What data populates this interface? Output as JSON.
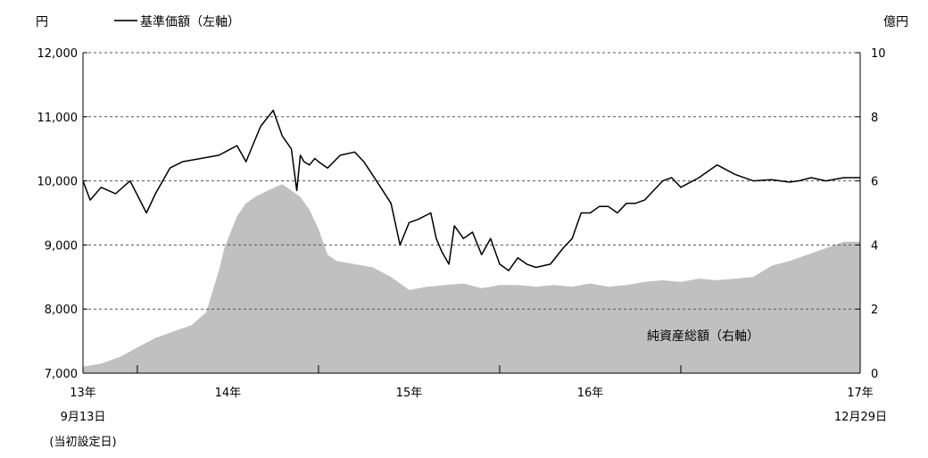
{
  "chart_data": {
    "type": "line",
    "left_axis": {
      "unit": "円",
      "range": [
        7000,
        12000
      ],
      "ticks": [
        {
          "value": 7000,
          "label": "7,000"
        },
        {
          "value": 8000,
          "label": "8,000"
        },
        {
          "value": 9000,
          "label": "9,000"
        },
        {
          "value": 10000,
          "label": "10,000"
        },
        {
          "value": 11000,
          "label": "11,000"
        },
        {
          "value": 12000,
          "label": "12,000"
        }
      ]
    },
    "right_axis": {
      "unit": "億円",
      "range": [
        0,
        10
      ],
      "ticks": [
        {
          "value": 0,
          "label": "0"
        },
        {
          "value": 2,
          "label": "2"
        },
        {
          "value": 4,
          "label": "4"
        },
        {
          "value": 6,
          "label": "6"
        },
        {
          "value": 8,
          "label": "8"
        },
        {
          "value": 10,
          "label": "10"
        }
      ]
    },
    "x_axis": {
      "range": [
        2013.7,
        2017.99
      ],
      "ticks": [
        {
          "value": 2013.7,
          "line1": "13年",
          "line2": "9月13日",
          "line3": "(当初設定日)"
        },
        {
          "value": 2014.5,
          "line1": "14年"
        },
        {
          "value": 2015.5,
          "line1": "15年"
        },
        {
          "value": 2016.5,
          "line1": "16年"
        },
        {
          "value": 2017.99,
          "line1": "17年",
          "line2": "12月29日"
        }
      ],
      "minor_ticks": [
        2014.0,
        2015.0,
        2016.0,
        2017.0
      ]
    },
    "grid": true,
    "legend": "top-left",
    "series": [
      {
        "name": "基準価額（左軸）",
        "axis": "left",
        "kind": "line",
        "color": "#000000",
        "x": [
          2013.7,
          2013.74,
          2013.8,
          2013.88,
          2013.96,
          2014.05,
          2014.1,
          2014.18,
          2014.25,
          2014.35,
          2014.45,
          2014.55,
          2014.6,
          2014.68,
          2014.75,
          2014.8,
          2014.85,
          2014.88,
          2014.9,
          2014.92,
          2014.95,
          2014.98,
          2015.0,
          2015.05,
          2015.12,
          2015.2,
          2015.25,
          2015.32,
          2015.4,
          2015.45,
          2015.5,
          2015.55,
          2015.62,
          2015.65,
          2015.68,
          2015.72,
          2015.75,
          2015.8,
          2015.85,
          2015.9,
          2015.95,
          2016.0,
          2016.05,
          2016.1,
          2016.15,
          2016.2,
          2016.28,
          2016.35,
          2016.4,
          2016.45,
          2016.5,
          2016.55,
          2016.6,
          2016.65,
          2016.7,
          2016.75,
          2016.8,
          2016.85,
          2016.9,
          2016.95,
          2017.0,
          2017.1,
          2017.2,
          2017.3,
          2017.4,
          2017.5,
          2017.6,
          2017.65,
          2017.72,
          2017.8,
          2017.9,
          2017.99
        ],
        "values": [
          10000,
          9700,
          9900,
          9800,
          10000,
          9500,
          9800,
          10200,
          10300,
          10350,
          10400,
          10550,
          10300,
          10850,
          11100,
          10700,
          10500,
          9850,
          10400,
          10300,
          10250,
          10350,
          10300,
          10200,
          10400,
          10450,
          10300,
          10000,
          9650,
          9000,
          9350,
          9400,
          9500,
          9100,
          8900,
          8700,
          9300,
          9100,
          9200,
          8850,
          9100,
          8700,
          8600,
          8800,
          8700,
          8650,
          8700,
          8950,
          9100,
          9500,
          9500,
          9600,
          9600,
          9500,
          9650,
          9650,
          9700,
          9850,
          10000,
          10050,
          9900,
          10050,
          10250,
          10100,
          10000,
          10020,
          9980,
          10000,
          10050,
          10000,
          10050,
          10050
        ]
      },
      {
        "name": "純資産総額（右軸）",
        "axis": "right",
        "kind": "area",
        "color": "#c0c0c0",
        "x": [
          2013.7,
          2013.8,
          2013.9,
          2014.0,
          2014.1,
          2014.2,
          2014.3,
          2014.38,
          2014.45,
          2014.48,
          2014.55,
          2014.6,
          2014.65,
          2014.72,
          2014.8,
          2014.85,
          2014.9,
          2014.95,
          2015.0,
          2015.05,
          2015.1,
          2015.2,
          2015.3,
          2015.4,
          2015.5,
          2015.6,
          2015.7,
          2015.8,
          2015.9,
          2016.0,
          2016.1,
          2016.2,
          2016.3,
          2016.4,
          2016.5,
          2016.6,
          2016.7,
          2016.8,
          2016.9,
          2017.0,
          2017.1,
          2017.2,
          2017.3,
          2017.4,
          2017.5,
          2017.6,
          2017.7,
          2017.8,
          2017.9,
          2017.99
        ],
        "values": [
          0.2,
          0.3,
          0.5,
          0.8,
          1.1,
          1.3,
          1.5,
          1.9,
          3.2,
          3.9,
          4.9,
          5.3,
          5.5,
          5.7,
          5.9,
          5.7,
          5.5,
          5.1,
          4.5,
          3.7,
          3.5,
          3.4,
          3.3,
          3.0,
          2.6,
          2.7,
          2.75,
          2.8,
          2.65,
          2.75,
          2.75,
          2.7,
          2.75,
          2.7,
          2.8,
          2.7,
          2.75,
          2.85,
          2.9,
          2.85,
          2.95,
          2.9,
          2.95,
          3.0,
          3.35,
          3.5,
          3.7,
          3.9,
          4.1,
          4.1
        ]
      }
    ],
    "annotations": [
      "純資産総額（右軸）"
    ]
  }
}
